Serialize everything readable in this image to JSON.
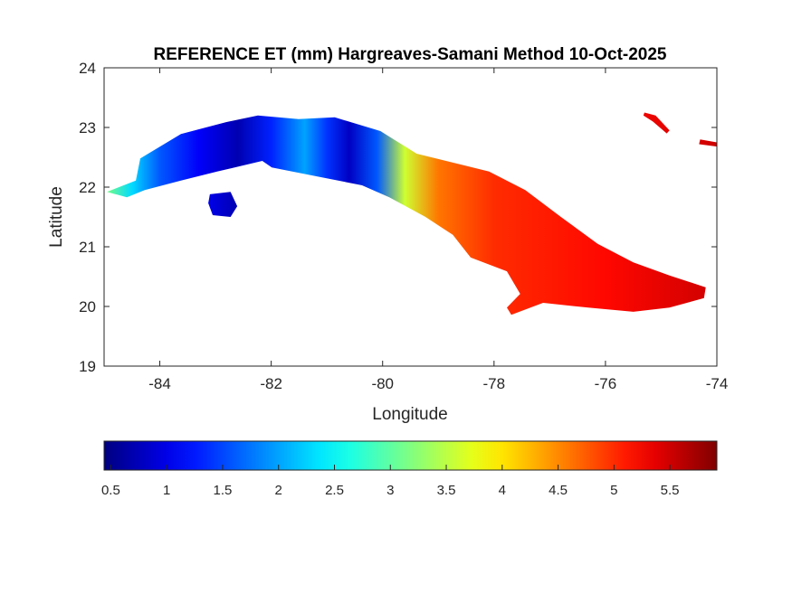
{
  "chart_data": {
    "type": "heatmap",
    "title": "REFERENCE ET (mm) Hargreaves-Samani Method  10-Oct-2025",
    "xlabel": "Longitude",
    "ylabel": "Latitude",
    "xlim": [
      -85,
      -74
    ],
    "ylim": [
      19,
      24
    ],
    "xticks": [
      -84,
      -82,
      -80,
      -78,
      -76,
      -74
    ],
    "xtick_labels": [
      "-84",
      "-82",
      "-80",
      "-78",
      "-76",
      "-74"
    ],
    "yticks": [
      19,
      20,
      21,
      22,
      23,
      24
    ],
    "ytick_labels": [
      "19",
      "20",
      "21",
      "22",
      "23",
      "24"
    ],
    "colormap": "jet",
    "clim": [
      0.44,
      5.92
    ],
    "colorbar": {
      "location": "south",
      "ticks": [
        0.5,
        1,
        1.5,
        2,
        2.5,
        3,
        3.5,
        4,
        4.5,
        5,
        5.5
      ],
      "tick_labels": [
        "0.5",
        "1",
        "1.5",
        "2",
        "2.5",
        "3",
        "3.5",
        "4",
        "4.5",
        "5",
        "5.5"
      ]
    },
    "et_profile_by_longitude": [
      {
        "lon": -85.0,
        "value": 3.2
      },
      {
        "lon": -84.5,
        "value": 2.3
      },
      {
        "lon": -84.0,
        "value": 1.6
      },
      {
        "lon": -83.3,
        "value": 1.1
      },
      {
        "lon": -82.6,
        "value": 0.7
      },
      {
        "lon": -82.0,
        "value": 1.3
      },
      {
        "lon": -81.4,
        "value": 2.0
      },
      {
        "lon": -81.0,
        "value": 1.4
      },
      {
        "lon": -80.6,
        "value": 0.8
      },
      {
        "lon": -80.1,
        "value": 1.6
      },
      {
        "lon": -79.6,
        "value": 3.6
      },
      {
        "lon": -79.0,
        "value": 4.6
      },
      {
        "lon": -78.0,
        "value": 5.0
      },
      {
        "lon": -76.0,
        "value": 5.2
      },
      {
        "lon": -74.0,
        "value": 5.5
      }
    ],
    "regions": [
      {
        "name": "cuba-main-island",
        "lonlat": [
          [
            -84.95,
            21.92
          ],
          [
            -84.43,
            22.11
          ],
          [
            -84.35,
            22.48
          ],
          [
            -83.62,
            22.89
          ],
          [
            -82.81,
            23.09
          ],
          [
            -82.24,
            23.2
          ],
          [
            -81.51,
            23.14
          ],
          [
            -80.86,
            23.17
          ],
          [
            -80.04,
            22.94
          ],
          [
            -79.39,
            22.56
          ],
          [
            -78.74,
            22.41
          ],
          [
            -78.09,
            22.26
          ],
          [
            -77.44,
            21.95
          ],
          [
            -76.8,
            21.5
          ],
          [
            -76.14,
            21.05
          ],
          [
            -75.5,
            20.74
          ],
          [
            -74.85,
            20.52
          ],
          [
            -74.2,
            20.32
          ],
          [
            -74.23,
            20.14
          ],
          [
            -74.85,
            19.98
          ],
          [
            -75.5,
            19.91
          ],
          [
            -76.31,
            19.98
          ],
          [
            -77.12,
            20.06
          ],
          [
            -77.69,
            19.86
          ],
          [
            -77.77,
            19.98
          ],
          [
            -77.53,
            20.21
          ],
          [
            -77.77,
            20.59
          ],
          [
            -78.42,
            20.82
          ],
          [
            -78.74,
            21.2
          ],
          [
            -79.23,
            21.5
          ],
          [
            -79.88,
            21.83
          ],
          [
            -80.37,
            22.03
          ],
          [
            -81.18,
            22.18
          ],
          [
            -81.99,
            22.33
          ],
          [
            -82.16,
            22.44
          ],
          [
            -82.97,
            22.26
          ],
          [
            -83.62,
            22.11
          ],
          [
            -84.27,
            21.95
          ],
          [
            -84.59,
            21.83
          ]
        ]
      },
      {
        "name": "isla-de-la-juventud",
        "lonlat": [
          [
            -83.1,
            21.88
          ],
          [
            -82.73,
            21.92
          ],
          [
            -82.61,
            21.68
          ],
          [
            -82.73,
            21.5
          ],
          [
            -83.05,
            21.53
          ],
          [
            -83.13,
            21.73
          ]
        ]
      },
      {
        "name": "haiti-fragment",
        "lonlat": [
          [
            -74.0,
            22.75
          ],
          [
            -74.3,
            22.8
          ],
          [
            -74.32,
            22.72
          ],
          [
            -74.0,
            22.68
          ]
        ]
      },
      {
        "name": "bahamas-fragment",
        "lonlat": [
          [
            -75.3,
            23.25
          ],
          [
            -75.1,
            23.2
          ],
          [
            -74.85,
            22.95
          ],
          [
            -74.9,
            22.9
          ],
          [
            -75.15,
            23.1
          ],
          [
            -75.32,
            23.2
          ]
        ]
      }
    ]
  }
}
